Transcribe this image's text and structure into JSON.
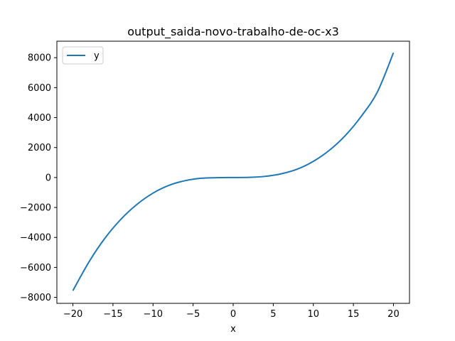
{
  "chart_data": {
    "type": "line",
    "title": "output_saida-novo-trabalho-de-oc-x3",
    "xlabel": "x",
    "ylabel": "",
    "xlim": [
      -22,
      22
    ],
    "ylim": [
      -8400,
      9100
    ],
    "xticks": [
      -20,
      -15,
      -10,
      -5,
      0,
      5,
      10,
      15,
      20
    ],
    "xtick_labels": [
      "−20",
      "−15",
      "−10",
      "−5",
      "0",
      "5",
      "10",
      "15",
      "20"
    ],
    "yticks": [
      -8000,
      -6000,
      -4000,
      -2000,
      0,
      2000,
      4000,
      6000,
      8000
    ],
    "ytick_labels": [
      "−8000",
      "−6000",
      "−4000",
      "−2000",
      "0",
      "2000",
      "4000",
      "6000",
      "8000"
    ],
    "grid": false,
    "legend_position": "upper-left",
    "series": [
      {
        "name": "y",
        "color": "#1f77b4",
        "x": [
          -20,
          -18,
          -16,
          -14,
          -12,
          -10,
          -8,
          -6,
          -4,
          -2,
          0,
          2,
          4,
          6,
          8,
          10,
          12,
          14,
          16,
          18,
          20
        ],
        "y": [
          -7550,
          -5640,
          -4050,
          -2780,
          -1790,
          -1040,
          -520,
          -210,
          -50,
          -10,
          0,
          10,
          80,
          250,
          560,
          1080,
          1820,
          2810,
          4100,
          5720,
          8330
        ]
      }
    ]
  }
}
